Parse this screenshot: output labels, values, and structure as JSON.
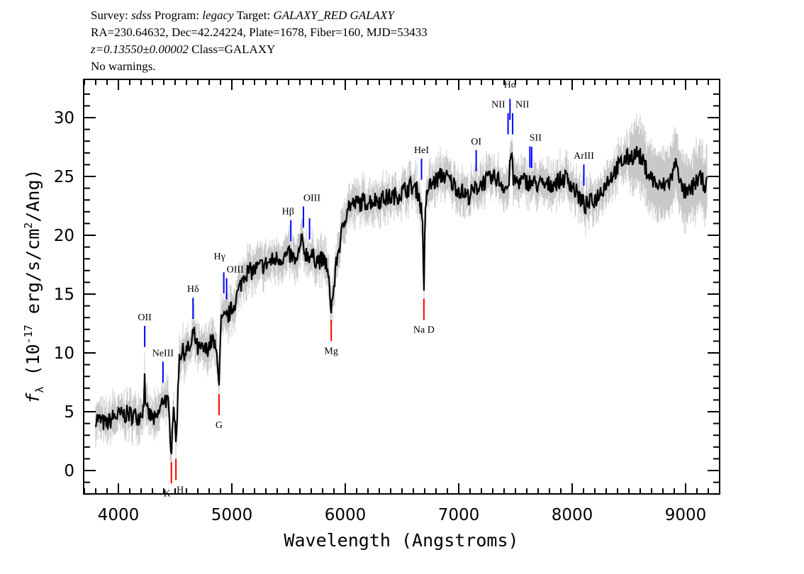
{
  "header": {
    "line1": {
      "survey_label": "Survey: ",
      "survey": "sdss",
      "program_label": " Program: ",
      "program": "legacy",
      "target_label": " Target: ",
      "target": "GALAXY_RED GALAXY"
    },
    "line2": "RA=230.64632, Dec=42.24224, Plate=1678, Fiber=160, MJD=53433",
    "line3": {
      "z": "z=0.13550±0.00002",
      "class": " Class=GALAXY"
    },
    "line4": "No warnings."
  },
  "chart_data": {
    "type": "line",
    "xlabel": "Wavelength (Angstroms)",
    "ylabel": {
      "symbol": "f",
      "sub": "λ",
      "pre": " (10",
      "exp1": "-17",
      "mid": " erg/s/cm",
      "exp2": "2",
      "post": "/Ang)"
    },
    "xlim": [
      3694,
      9300
    ],
    "ylim": [
      -2,
      32.3
    ],
    "xticks": [
      4000,
      5000,
      6000,
      7000,
      8000,
      9000
    ],
    "yticks": [
      0,
      5,
      10,
      15,
      20,
      25,
      30
    ],
    "colors": {
      "flux": "#000000",
      "error": "#c8c8c8",
      "emission": "#0000ff",
      "absorption": "#ff0000"
    },
    "series": [
      {
        "x": [
          3800,
          3894,
          3960,
          4081,
          4180,
          4225,
          4232,
          4240,
          4331,
          4406,
          4440,
          4467,
          4487,
          4507,
          4537,
          4600,
          4644,
          4660,
          4700,
          4769,
          4831,
          4875,
          4887,
          4906,
          4960,
          5019,
          5112,
          5190,
          5269,
          5394,
          5519,
          5575,
          5612,
          5650,
          5737,
          5831,
          5860,
          5876,
          5900,
          5925,
          6019,
          6144,
          6331,
          6456,
          6581,
          6644,
          6680,
          6693,
          6705,
          6725,
          6862,
          6988,
          7081,
          7206,
          7331,
          7420,
          7444,
          7452,
          7462,
          7481,
          7581,
          7769,
          7956,
          8019,
          8113,
          8206,
          8331,
          8456,
          8581,
          8675,
          8769,
          8862,
          8925,
          8960,
          9019,
          9113,
          9188
        ],
        "y": [
          4.5,
          3.9,
          4.6,
          4.8,
          4.6,
          5.4,
          9.3,
          5.0,
          4.2,
          6.3,
          5.5,
          1.7,
          6.0,
          2.0,
          9.9,
          10.2,
          10.5,
          11.8,
          10.3,
          10.2,
          11.1,
          9.5,
          7.5,
          12.6,
          13.0,
          14.1,
          16.8,
          17.0,
          17.4,
          18.0,
          18.3,
          17.6,
          19.5,
          18.5,
          18.0,
          17.7,
          15.5,
          13.8,
          15.5,
          18.0,
          22.5,
          22.8,
          23.1,
          23.4,
          24.2,
          23.7,
          21.5,
          15.6,
          21.5,
          24.0,
          25.2,
          24.0,
          23.3,
          24.5,
          24.9,
          24.0,
          24.3,
          26.0,
          27.6,
          24.6,
          24.6,
          24.2,
          24.9,
          23.9,
          22.5,
          23.1,
          24.9,
          26.4,
          27.0,
          25.2,
          24.0,
          24.6,
          26.4,
          24.0,
          23.4,
          24.9,
          24.2
        ]
      }
    ],
    "lines": [
      {
        "label": "OII",
        "wavelength": 4232,
        "type": "emission"
      },
      {
        "label": "NeIII",
        "wavelength": 4393,
        "type": "emission"
      },
      {
        "label": "Hδ",
        "wavelength": 4658,
        "type": "emission"
      },
      {
        "label": "Hγ",
        "wavelength": 4929,
        "type": "emission"
      },
      {
        "label": "OIII",
        "wavelength": 4954,
        "type": "emission"
      },
      {
        "label": "Hβ",
        "wavelength": 5520,
        "type": "emission"
      },
      {
        "label": "OIII",
        "wavelength": 5631,
        "type": "emission"
      },
      {
        "label": "",
        "wavelength": 5685,
        "type": "emission"
      },
      {
        "label": "HeI",
        "wavelength": 6672,
        "type": "emission"
      },
      {
        "label": "OI",
        "wavelength": 7154,
        "type": "emission"
      },
      {
        "label": "NII",
        "wavelength": 7435,
        "type": "emission"
      },
      {
        "label": "Hα",
        "wavelength": 7452,
        "type": "emission"
      },
      {
        "label": "NII",
        "wavelength": 7475,
        "type": "emission"
      },
      {
        "label": "SII",
        "wavelength": 7627,
        "type": "emission"
      },
      {
        "label": "",
        "wavelength": 7643,
        "type": "emission"
      },
      {
        "label": "ArIII",
        "wavelength": 8103,
        "type": "emission"
      },
      {
        "label": "K",
        "wavelength": 4467,
        "type": "absorption"
      },
      {
        "label": "H",
        "wavelength": 4507,
        "type": "absorption"
      },
      {
        "label": "G",
        "wavelength": 4887,
        "type": "absorption"
      },
      {
        "label": "Mg",
        "wavelength": 5876,
        "type": "absorption"
      },
      {
        "label": "Na D",
        "wavelength": 6693,
        "type": "absorption"
      }
    ]
  }
}
